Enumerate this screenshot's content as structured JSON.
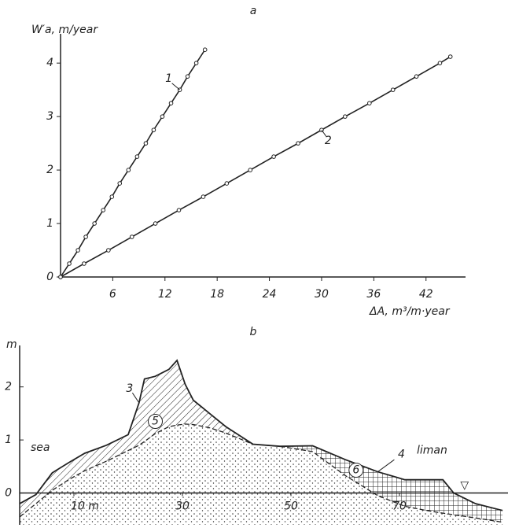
{
  "chart_data": [
    {
      "type": "line",
      "title": "a",
      "y_label": "W′a, m/year",
      "x_label": "ΔA, m³/m·year",
      "xlim": [
        0,
        46
      ],
      "ylim": [
        0,
        4.4
      ],
      "xticks": [
        6,
        12,
        18,
        24,
        30,
        36,
        42
      ],
      "yticks": [
        0,
        1,
        2,
        3,
        4
      ],
      "series": [
        {
          "name": "1",
          "color": "#222222",
          "x": [
            0,
            1.0,
            2.0,
            2.9,
            3.9,
            4.9,
            5.9,
            6.8,
            7.8,
            8.8,
            9.8,
            10.7,
            11.7,
            12.7,
            13.7,
            14.6,
            15.6,
            16.6
          ],
          "values": [
            0,
            0.25,
            0.5,
            0.75,
            1.0,
            1.25,
            1.5,
            1.75,
            2.0,
            2.25,
            2.5,
            2.75,
            3.0,
            3.25,
            3.5,
            3.75,
            4.0,
            4.25
          ]
        },
        {
          "name": "2",
          "color": "#222222",
          "x": [
            0,
            2.7,
            5.5,
            8.2,
            10.9,
            13.6,
            16.4,
            19.1,
            21.8,
            24.5,
            27.3,
            30.0,
            32.7,
            35.5,
            38.2,
            40.9,
            43.6,
            44.8
          ],
          "values": [
            0,
            0.25,
            0.5,
            0.75,
            1.0,
            1.25,
            1.5,
            1.75,
            2.0,
            2.25,
            2.5,
            2.75,
            3.0,
            3.25,
            3.5,
            3.75,
            4.0,
            4.12
          ]
        }
      ]
    },
    {
      "type": "profile",
      "title": "b",
      "y_label": "m",
      "xlim": [
        0,
        90
      ],
      "ylim": [
        -0.6,
        2.9
      ],
      "xticks": [
        {
          "value": 10,
          "label": "10 m"
        },
        30,
        50,
        70
      ],
      "yticks": [
        0,
        1,
        2
      ],
      "x": [
        0,
        3,
        6,
        9,
        12,
        16,
        20,
        22,
        23,
        25,
        27.5,
        29,
        30.5,
        32,
        35,
        38,
        43,
        48,
        54,
        60,
        66,
        71,
        75,
        78,
        80,
        84,
        89
      ],
      "series": [
        {
          "name": "3",
          "color": "#222222",
          "values": [
            -0.2,
            -0.03,
            0.38,
            0.57,
            0.75,
            0.9,
            1.1,
            1.7,
            2.15,
            2.2,
            2.33,
            2.5,
            2.05,
            1.75,
            1.5,
            1.25,
            0.92,
            0.88,
            0.89,
            0.63,
            0.4,
            0.25,
            0.25,
            0.25,
            0.0,
            -0.2,
            -0.33
          ]
        },
        {
          "name": "4",
          "color": "#222222",
          "values": [
            -0.45,
            -0.2,
            0.05,
            0.25,
            0.42,
            0.6,
            0.8,
            0.9,
            0.97,
            1.12,
            1.25,
            1.28,
            1.3,
            1.29,
            1.23,
            1.13,
            0.92,
            0.88,
            0.78,
            0.33,
            -0.05,
            -0.25,
            -0.33,
            -0.38,
            -0.41,
            -0.47,
            -0.55
          ]
        }
      ],
      "annotations": [
        "sea",
        "liman",
        "5",
        "6",
        "▽"
      ]
    }
  ]
}
